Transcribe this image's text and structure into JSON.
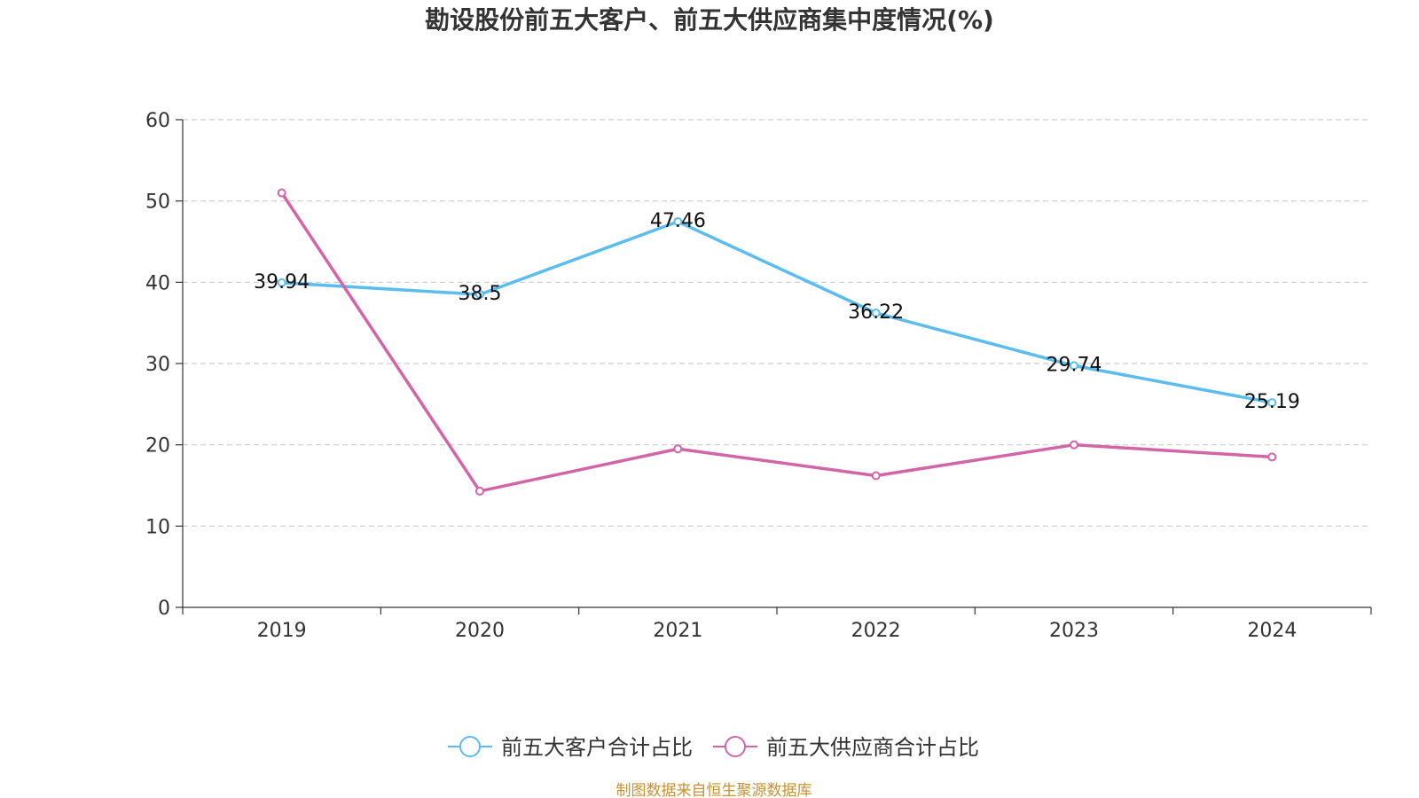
{
  "chart_data": {
    "type": "line",
    "title": "勘设股份前五大客户、前五大供应商集中度情况(%)",
    "categories": [
      "2019",
      "2020",
      "2021",
      "2022",
      "2023",
      "2024"
    ],
    "ylim": [
      0,
      60
    ],
    "yticks": [
      0,
      10,
      20,
      30,
      40,
      50,
      60
    ],
    "grid": true,
    "legend_position": "bottom-center",
    "series": [
      {
        "name": "前五大客户合计占比",
        "color": "#5bbcf0",
        "values": [
          39.94,
          38.5,
          47.46,
          36.22,
          29.74,
          25.19
        ],
        "labels": [
          "39.94",
          "38.5",
          "47.46",
          "36.22",
          "29.74",
          "25.19"
        ],
        "show_labels": true
      },
      {
        "name": "前五大供应商合计占比",
        "color": "#d264a8",
        "values": [
          51.0,
          14.3,
          19.5,
          16.2,
          20.0,
          18.5
        ],
        "show_labels": false
      }
    ]
  },
  "source_text": "制图数据来自恒生聚源数据库"
}
